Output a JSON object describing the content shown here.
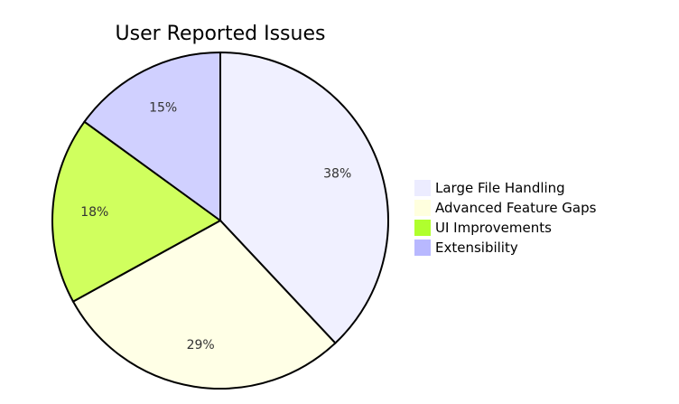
{
  "chart_data": {
    "type": "pie",
    "title": "User Reported Issues",
    "slices": [
      {
        "label": "Large File Handling",
        "value": 38,
        "display": "38%",
        "color": "#f0f0ff",
        "legend_color": "#ececff"
      },
      {
        "label": "Advanced Feature Gaps",
        "value": 29,
        "display": "29%",
        "color": "#ffffe6",
        "legend_color": "#ffffde"
      },
      {
        "label": "UI Improvements",
        "value": 18,
        "display": "18%",
        "color": "#d0ff5e",
        "legend_color": "#b0ff2e"
      },
      {
        "label": "Extensibility",
        "value": 15,
        "display": "15%",
        "color": "#d0d0ff",
        "legend_color": "#b8b8ff"
      }
    ],
    "start_angle": "12 o'clock",
    "direction": "clockwise",
    "legend_position": "right"
  }
}
